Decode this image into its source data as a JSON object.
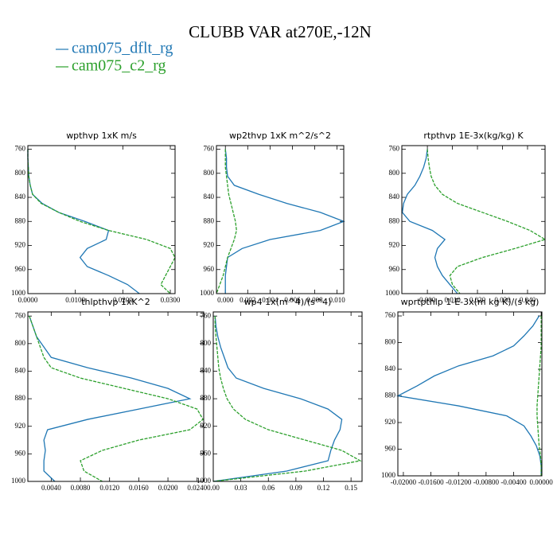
{
  "title": "CLUBB VAR at270E,-12N",
  "legend": [
    {
      "name": "cam075_dflt_rg",
      "color": "#1f77b4"
    },
    {
      "name": "cam075_c2_rg",
      "color": "#2ca02c"
    }
  ],
  "chart_data": [
    {
      "type": "line",
      "title": "wpthvp  1xK m/s",
      "y": [
        760,
        775,
        790,
        805,
        820,
        835,
        850,
        865,
        880,
        895,
        910,
        925,
        940,
        955,
        970,
        985,
        1000
      ],
      "ylim": [
        1000,
        754
      ],
      "yticks": [
        760,
        800,
        840,
        880,
        920,
        960,
        1000
      ],
      "xlim": [
        0,
        0.031
      ],
      "xticks": [
        {
          "value": 0,
          "label": "0.0000"
        },
        {
          "value": 0.01,
          "label": "0.0100"
        },
        {
          "value": 0.02,
          "label": "0.0200"
        },
        {
          "value": 0.03,
          "label": "0.0300"
        }
      ],
      "series": [
        {
          "color": "#1f77b4",
          "linestyle": "solid",
          "values": [
            0,
            0,
            0.0001,
            0.0002,
            0.0005,
            0.001,
            0.003,
            0.0065,
            0.012,
            0.017,
            0.0165,
            0.0125,
            0.011,
            0.0125,
            0.017,
            0.021,
            0.0235
          ]
        },
        {
          "color": "#2ca02c",
          "linestyle": "dashed",
          "values": [
            0,
            0,
            0.0001,
            0.0002,
            0.0005,
            0.001,
            0.0028,
            0.0065,
            0.011,
            0.017,
            0.025,
            0.03,
            0.031,
            0.03,
            0.029,
            0.028,
            0.03
          ]
        }
      ]
    },
    {
      "type": "line",
      "title": "wp2thvp  1xK m^2/s^2",
      "y": [
        760,
        775,
        790,
        805,
        820,
        835,
        850,
        865,
        880,
        895,
        910,
        925,
        940,
        955,
        970,
        985,
        1000
      ],
      "ylim": [
        1000,
        754
      ],
      "yticks": [
        760,
        800,
        840,
        880,
        920,
        960,
        1000
      ],
      "xlim": [
        -0.0008,
        0.0106
      ],
      "xticks": [
        {
          "value": 0,
          "label": "0.000"
        },
        0.002,
        0.004,
        0.006,
        0.008,
        {
          "value": 0.01,
          "label": "0.010"
        }
      ],
      "series": [
        {
          "color": "#1f77b4",
          "linestyle": "solid",
          "values": [
            0,
            0.0001,
            0.0001,
            0.0002,
            0.0008,
            0.003,
            0.0055,
            0.0085,
            0.0106,
            0.0085,
            0.004,
            0.0015,
            0.0002,
            0.0001,
            0,
            0,
            0
          ]
        },
        {
          "color": "#2ca02c",
          "linestyle": "dashed",
          "values": [
            0,
            0,
            0,
            0.0001,
            0.0002,
            0.0003,
            0.0005,
            0.0007,
            0.0009,
            0.001,
            0.0008,
            0.0005,
            0.0002,
            0,
            -0.0002,
            -0.0005,
            -0.0008
          ]
        }
      ]
    },
    {
      "type": "line",
      "title": "rtpthvp  1E-3x(kg/kg) K",
      "y": [
        760,
        775,
        790,
        805,
        820,
        835,
        850,
        865,
        880,
        895,
        910,
        925,
        940,
        955,
        970,
        985,
        1000
      ],
      "ylim": [
        1000,
        754
      ],
      "yticks": [
        760,
        800,
        840,
        880,
        920,
        960,
        1000
      ],
      "xlim": [
        -0.0102,
        0.047
      ],
      "xticks": [
        {
          "value": 0,
          "label": "0.000"
        },
        {
          "value": 0.01,
          "label": "0.010"
        },
        {
          "value": 0.02,
          "label": "0.020"
        },
        {
          "value": 0.03,
          "label": "0.030"
        },
        {
          "value": 0.04,
          "label": "0.040"
        }
      ],
      "series": [
        {
          "color": "#1f77b4",
          "linestyle": "solid",
          "values": [
            0,
            -0.0005,
            -0.0015,
            -0.003,
            -0.005,
            -0.008,
            -0.0095,
            -0.01,
            -0.007,
            0.002,
            0.007,
            0.004,
            0.003,
            0.004,
            0.006,
            0.009,
            0.012
          ]
        },
        {
          "color": "#2ca02c",
          "linestyle": "dashed",
          "values": [
            0,
            0.0003,
            0.0008,
            0.0015,
            0.003,
            0.006,
            0.012,
            0.022,
            0.032,
            0.041,
            0.047,
            0.035,
            0.022,
            0.012,
            0.009,
            0.01,
            0.013
          ]
        }
      ]
    },
    {
      "type": "line",
      "title": "thlpthvp  1xK^2",
      "y": [
        760,
        775,
        790,
        805,
        820,
        835,
        850,
        865,
        880,
        895,
        910,
        925,
        940,
        955,
        970,
        985,
        1000
      ],
      "ylim": [
        1000,
        754
      ],
      "yticks": [
        760,
        800,
        840,
        880,
        920,
        960,
        1000
      ],
      "xlim": [
        0.0008,
        0.0249
      ],
      "xticks": [
        {
          "value": 0.004,
          "label": "0.0040"
        },
        {
          "value": 0.008,
          "label": "0.0080"
        },
        {
          "value": 0.012,
          "label": "0.0120"
        },
        {
          "value": 0.016,
          "label": "0.0160"
        },
        {
          "value": 0.02,
          "label": "0.0200"
        },
        {
          "value": 0.024,
          "label": "0.0240"
        }
      ],
      "series": [
        {
          "color": "#1f77b4",
          "linestyle": "solid",
          "values": [
            0.001,
            0.0015,
            0.002,
            0.003,
            0.004,
            0.009,
            0.015,
            0.02,
            0.023,
            0.016,
            0.009,
            0.0035,
            0.003,
            0.0032,
            0.003,
            0.003,
            0.0045
          ]
        },
        {
          "color": "#2ca02c",
          "linestyle": "dashed",
          "values": [
            0.001,
            0.0015,
            0.002,
            0.0025,
            0.003,
            0.004,
            0.008,
            0.014,
            0.02,
            0.024,
            0.0248,
            0.023,
            0.016,
            0.011,
            0.008,
            0.0085,
            0.011
          ]
        }
      ]
    },
    {
      "type": "line",
      "title": "wp4  1x(m^4)/(s^4)",
      "y": [
        760,
        775,
        790,
        805,
        820,
        835,
        850,
        865,
        880,
        895,
        910,
        925,
        940,
        955,
        970,
        985,
        1000
      ],
      "ylim": [
        1000,
        754
      ],
      "yticks": [
        760,
        800,
        840,
        880,
        920,
        960,
        1000
      ],
      "xlim": [
        0,
        0.162
      ],
      "xticks": [
        {
          "value": 0,
          "label": "0.00"
        },
        0.03,
        0.06,
        0.09,
        0.12,
        0.15
      ],
      "series": [
        {
          "color": "#1f77b4",
          "linestyle": "solid",
          "values": [
            0.002,
            0.003,
            0.005,
            0.008,
            0.012,
            0.016,
            0.025,
            0.055,
            0.095,
            0.125,
            0.14,
            0.138,
            0.132,
            0.128,
            0.125,
            0.08,
            0
          ]
        },
        {
          "color": "#2ca02c",
          "linestyle": "dashed",
          "values": [
            0.002,
            0.002,
            0.003,
            0.004,
            0.005,
            0.006,
            0.008,
            0.011,
            0.015,
            0.022,
            0.035,
            0.06,
            0.1,
            0.14,
            0.16,
            0.1,
            0
          ]
        }
      ]
    },
    {
      "type": "line",
      "title": "wprtpthlp  1-E-3x(m kg K)/(s kg)",
      "y": [
        760,
        775,
        790,
        805,
        820,
        835,
        850,
        865,
        880,
        895,
        910,
        925,
        940,
        955,
        970,
        985,
        1000
      ],
      "ylim": [
        1000,
        754
      ],
      "yticks": [
        760,
        800,
        840,
        880,
        920,
        960,
        1000
      ],
      "xlim": [
        -0.0208,
        0.0001
      ],
      "xticks": [
        {
          "value": -0.02,
          "label": "-0.02000"
        },
        {
          "value": -0.016,
          "label": "-0.01600"
        },
        {
          "value": -0.012,
          "label": "-0.01200"
        },
        {
          "value": -0.008,
          "label": "-0.00800"
        },
        {
          "value": -0.004,
          "label": "-0.00400"
        },
        {
          "value": 0,
          "label": "0.00000"
        }
      ],
      "series": [
        {
          "color": "#1f77b4",
          "linestyle": "solid",
          "values": [
            -0.0003,
            -0.0012,
            -0.0025,
            -0.004,
            -0.007,
            -0.012,
            -0.0155,
            -0.018,
            -0.0208,
            -0.012,
            -0.005,
            -0.0025,
            -0.0015,
            -0.0007,
            -0.0002,
            0,
            0
          ]
        },
        {
          "color": "#2ca02c",
          "linestyle": "dashed",
          "values": [
            0,
            0,
            0,
            0,
            -0.0001,
            -0.0002,
            -0.0003,
            -0.0004,
            -0.0005,
            -0.0006,
            -0.0006,
            -0.0005,
            -0.0004,
            -0.0003,
            -0.0001,
            0,
            0
          ]
        }
      ]
    }
  ]
}
